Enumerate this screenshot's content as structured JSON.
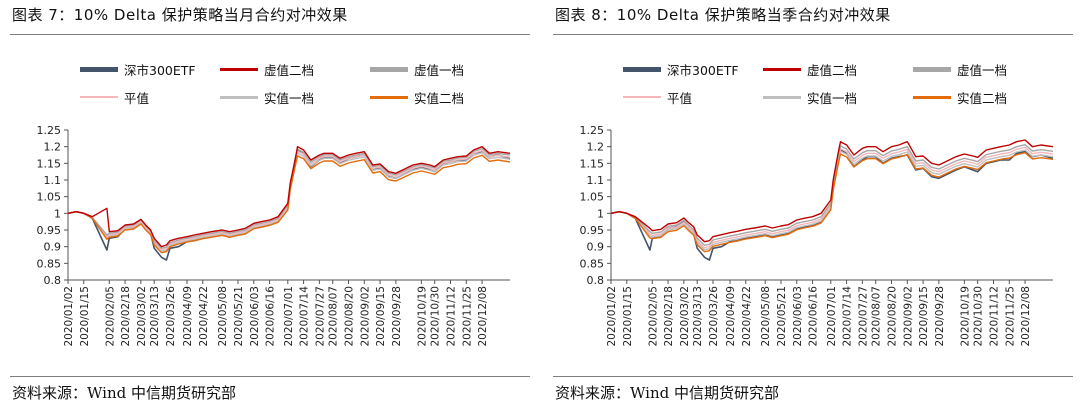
{
  "panels": [
    {
      "title": "图表 7：10% Delta 保护策略当月合约对冲效果",
      "source": "资料来源：Wind  中信期货研究部"
    },
    {
      "title": "图表 8：10% Delta 保护策略当季合约对冲效果",
      "source": "资料来源：Wind  中信期货研究部"
    }
  ],
  "chart_data": [
    {
      "type": "line",
      "title": "",
      "xlabel": "",
      "ylabel": "",
      "ylim": [
        0.8,
        1.25
      ],
      "yticks": [
        "1.25",
        "1.2",
        "1.15",
        "1.1",
        "1.05",
        "1",
        "0.95",
        "0.9",
        "0.85",
        "0.8"
      ],
      "grid": false,
      "legend_position": "top",
      "x_tick_labels": [
        "2020/01/02",
        "2020/01/15",
        "2020/02/05",
        "2020/02/18",
        "2020/03/02",
        "2020/03/13",
        "2020/03/26",
        "2020/04/09",
        "2020/04/22",
        "2020/05/08",
        "2020/05/21",
        "2020/06/03",
        "2020/06/16",
        "2020/07/01",
        "2020/07/14",
        "2020/07/27",
        "2020/08/07",
        "2020/08/20",
        "2020/09/02",
        "2020/09/15",
        "2020/09/28",
        "2020/10/19",
        "2020/10/30",
        "2020/11/12",
        "2020/11/25",
        "2020/12/08"
      ],
      "x": [
        "2020/01/02",
        "2020/01/09",
        "2020/01/15",
        "2020/01/22",
        "2020/02/03",
        "2020/02/05",
        "2020/02/12",
        "2020/02/18",
        "2020/02/25",
        "2020/03/02",
        "2020/03/06",
        "2020/03/10",
        "2020/03/13",
        "2020/03/19",
        "2020/03/23",
        "2020/03/26",
        "2020/04/02",
        "2020/04/09",
        "2020/04/15",
        "2020/04/22",
        "2020/04/29",
        "2020/05/08",
        "2020/05/14",
        "2020/05/21",
        "2020/05/27",
        "2020/06/03",
        "2020/06/09",
        "2020/06/16",
        "2020/06/23",
        "2020/07/01",
        "2020/07/03",
        "2020/07/07",
        "2020/07/09",
        "2020/07/14",
        "2020/07/20",
        "2020/07/27",
        "2020/07/31",
        "2020/08/07",
        "2020/08/13",
        "2020/08/20",
        "2020/08/26",
        "2020/09/02",
        "2020/09/09",
        "2020/09/15",
        "2020/09/22",
        "2020/09/28",
        "2020/10/12",
        "2020/10/19",
        "2020/10/26",
        "2020/10/30",
        "2020/11/06",
        "2020/11/12",
        "2020/11/18",
        "2020/11/25",
        "2020/12/01",
        "2020/12/08",
        "2020/12/14",
        "2020/12/21",
        "2020/12/31"
      ],
      "series": [
        {
          "name": "深市300ETF",
          "color": "#44546a",
          "values": [
            1.0,
            1.005,
            1.0,
            0.985,
            0.89,
            0.925,
            0.93,
            0.955,
            0.96,
            0.975,
            0.955,
            0.94,
            0.895,
            0.868,
            0.86,
            0.895,
            0.9,
            0.915,
            0.918,
            0.925,
            0.93,
            0.938,
            0.93,
            0.935,
            0.94,
            0.955,
            0.96,
            0.965,
            0.975,
            1.02,
            1.08,
            1.16,
            1.19,
            1.18,
            1.14,
            1.16,
            1.17,
            1.17,
            1.15,
            1.165,
            1.17,
            1.175,
            1.13,
            1.135,
            1.11,
            1.105,
            1.13,
            1.14,
            1.13,
            1.125,
            1.15,
            1.155,
            1.16,
            1.16,
            1.18,
            1.185,
            1.17,
            1.175,
            1.165
          ]
        },
        {
          "name": "虚值二档",
          "color": "#c00000",
          "values": [
            1.0,
            1.005,
            1.0,
            0.99,
            1.015,
            0.945,
            0.948,
            0.965,
            0.968,
            0.982,
            0.965,
            0.95,
            0.925,
            0.9,
            0.905,
            0.918,
            0.925,
            0.93,
            0.935,
            0.94,
            0.945,
            0.95,
            0.945,
            0.95,
            0.955,
            0.97,
            0.975,
            0.98,
            0.99,
            1.03,
            1.09,
            1.16,
            1.2,
            1.19,
            1.16,
            1.175,
            1.18,
            1.18,
            1.165,
            1.175,
            1.18,
            1.185,
            1.145,
            1.148,
            1.125,
            1.12,
            1.145,
            1.15,
            1.145,
            1.14,
            1.16,
            1.165,
            1.17,
            1.172,
            1.19,
            1.2,
            1.18,
            1.185,
            1.18
          ]
        },
        {
          "name": "虚值一档",
          "color": "#a6a6a6",
          "values": [
            1.0,
            1.005,
            1.0,
            0.988,
            0.935,
            0.94,
            0.944,
            0.962,
            0.965,
            0.98,
            0.962,
            0.947,
            0.918,
            0.895,
            0.898,
            0.912,
            0.92,
            0.926,
            0.93,
            0.936,
            0.94,
            0.946,
            0.94,
            0.946,
            0.95,
            0.966,
            0.97,
            0.976,
            0.985,
            1.025,
            1.085,
            1.156,
            1.192,
            1.183,
            1.154,
            1.17,
            1.176,
            1.176,
            1.16,
            1.17,
            1.175,
            1.18,
            1.14,
            1.144,
            1.12,
            1.116,
            1.14,
            1.146,
            1.14,
            1.136,
            1.156,
            1.16,
            1.166,
            1.168,
            1.186,
            1.194,
            1.176,
            1.18,
            1.175
          ]
        },
        {
          "name": "平值",
          "color": "#f4b6b9",
          "values": [
            1.0,
            1.005,
            1.0,
            0.987,
            0.93,
            0.936,
            0.94,
            0.958,
            0.961,
            0.976,
            0.958,
            0.944,
            0.913,
            0.89,
            0.893,
            0.908,
            0.916,
            0.922,
            0.926,
            0.932,
            0.936,
            0.942,
            0.936,
            0.942,
            0.946,
            0.962,
            0.966,
            0.972,
            0.981,
            1.02,
            1.08,
            1.15,
            1.186,
            1.178,
            1.148,
            1.165,
            1.171,
            1.171,
            1.155,
            1.165,
            1.17,
            1.175,
            1.135,
            1.139,
            1.115,
            1.111,
            1.135,
            1.141,
            1.135,
            1.131,
            1.151,
            1.155,
            1.161,
            1.163,
            1.18,
            1.188,
            1.17,
            1.174,
            1.168
          ]
        },
        {
          "name": "实值一档",
          "color": "#bfbfbf",
          "values": [
            1.0,
            1.005,
            1.0,
            0.986,
            0.926,
            0.932,
            0.936,
            0.954,
            0.957,
            0.972,
            0.954,
            0.94,
            0.909,
            0.886,
            0.889,
            0.904,
            0.912,
            0.918,
            0.922,
            0.928,
            0.932,
            0.938,
            0.932,
            0.938,
            0.942,
            0.958,
            0.962,
            0.968,
            0.977,
            1.016,
            1.076,
            1.145,
            1.18,
            1.172,
            1.142,
            1.159,
            1.165,
            1.165,
            1.149,
            1.159,
            1.164,
            1.169,
            1.129,
            1.133,
            1.109,
            1.105,
            1.129,
            1.135,
            1.129,
            1.125,
            1.145,
            1.149,
            1.155,
            1.157,
            1.174,
            1.182,
            1.164,
            1.168,
            1.162
          ]
        },
        {
          "name": "实值二档",
          "color": "#e46c0a",
          "values": [
            1.0,
            1.005,
            1.0,
            0.985,
            0.922,
            0.928,
            0.932,
            0.95,
            0.953,
            0.968,
            0.95,
            0.936,
            0.905,
            0.882,
            0.885,
            0.9,
            0.908,
            0.914,
            0.918,
            0.924,
            0.928,
            0.934,
            0.928,
            0.934,
            0.938,
            0.954,
            0.958,
            0.964,
            0.973,
            1.01,
            1.07,
            1.14,
            1.172,
            1.164,
            1.134,
            1.151,
            1.157,
            1.157,
            1.141,
            1.151,
            1.156,
            1.161,
            1.121,
            1.125,
            1.101,
            1.097,
            1.121,
            1.127,
            1.121,
            1.117,
            1.137,
            1.141,
            1.147,
            1.149,
            1.166,
            1.174,
            1.156,
            1.16,
            1.154
          ]
        }
      ]
    },
    {
      "type": "line",
      "title": "",
      "xlabel": "",
      "ylabel": "",
      "ylim": [
        0.8,
        1.25
      ],
      "yticks": [
        "1.25",
        "1.2",
        "1.15",
        "1.1",
        "1.05",
        "1",
        "0.95",
        "0.9",
        "0.85",
        "0.8"
      ],
      "grid": false,
      "legend_position": "top",
      "x_tick_labels": [
        "2020/01/02",
        "2020/01/15",
        "2020/02/05",
        "2020/02/18",
        "2020/03/02",
        "2020/03/13",
        "2020/03/26",
        "2020/04/09",
        "2020/04/22",
        "2020/05/08",
        "2020/05/21",
        "2020/06/03",
        "2020/06/16",
        "2020/07/01",
        "2020/07/14",
        "2020/07/27",
        "2020/08/07",
        "2020/08/20",
        "2020/09/02",
        "2020/09/15",
        "2020/09/28",
        "2020/10/19",
        "2020/10/30",
        "2020/11/12",
        "2020/11/25",
        "2020/12/08"
      ],
      "x": [
        "2020/01/02",
        "2020/01/09",
        "2020/01/15",
        "2020/01/22",
        "2020/02/03",
        "2020/02/05",
        "2020/02/12",
        "2020/02/18",
        "2020/02/25",
        "2020/03/02",
        "2020/03/06",
        "2020/03/10",
        "2020/03/13",
        "2020/03/19",
        "2020/03/23",
        "2020/03/26",
        "2020/04/02",
        "2020/04/09",
        "2020/04/15",
        "2020/04/22",
        "2020/04/29",
        "2020/05/08",
        "2020/05/14",
        "2020/05/21",
        "2020/05/27",
        "2020/06/03",
        "2020/06/09",
        "2020/06/16",
        "2020/06/23",
        "2020/07/01",
        "2020/07/03",
        "2020/07/07",
        "2020/07/09",
        "2020/07/14",
        "2020/07/20",
        "2020/07/27",
        "2020/07/31",
        "2020/08/07",
        "2020/08/13",
        "2020/08/20",
        "2020/08/26",
        "2020/09/02",
        "2020/09/09",
        "2020/09/15",
        "2020/09/22",
        "2020/09/28",
        "2020/10/12",
        "2020/10/19",
        "2020/10/26",
        "2020/10/30",
        "2020/11/06",
        "2020/11/12",
        "2020/11/18",
        "2020/11/25",
        "2020/12/01",
        "2020/12/08",
        "2020/12/14",
        "2020/12/21",
        "2020/12/31"
      ],
      "series": [
        {
          "name": "深市300ETF",
          "color": "#44546a",
          "values": [
            1.0,
            1.005,
            1.0,
            0.985,
            0.89,
            0.925,
            0.93,
            0.955,
            0.96,
            0.975,
            0.955,
            0.94,
            0.895,
            0.868,
            0.86,
            0.895,
            0.9,
            0.915,
            0.918,
            0.925,
            0.93,
            0.938,
            0.93,
            0.935,
            0.94,
            0.955,
            0.96,
            0.965,
            0.975,
            1.02,
            1.08,
            1.16,
            1.19,
            1.18,
            1.14,
            1.16,
            1.17,
            1.17,
            1.15,
            1.165,
            1.17,
            1.175,
            1.13,
            1.135,
            1.11,
            1.105,
            1.13,
            1.14,
            1.13,
            1.125,
            1.15,
            1.155,
            1.16,
            1.16,
            1.18,
            1.185,
            1.17,
            1.175,
            1.165
          ]
        },
        {
          "name": "虚值二档",
          "color": "#c00000",
          "values": [
            1.0,
            1.005,
            1.0,
            0.99,
            0.955,
            0.948,
            0.952,
            0.968,
            0.972,
            0.986,
            0.972,
            0.96,
            0.935,
            0.915,
            0.918,
            0.93,
            0.936,
            0.942,
            0.946,
            0.952,
            0.956,
            0.962,
            0.956,
            0.962,
            0.966,
            0.98,
            0.985,
            0.99,
            1.0,
            1.04,
            1.1,
            1.18,
            1.215,
            1.205,
            1.175,
            1.195,
            1.2,
            1.2,
            1.185,
            1.2,
            1.205,
            1.215,
            1.17,
            1.172,
            1.15,
            1.145,
            1.17,
            1.178,
            1.172,
            1.168,
            1.19,
            1.195,
            1.2,
            1.205,
            1.215,
            1.22,
            1.2,
            1.205,
            1.2
          ]
        },
        {
          "name": "虚值一档",
          "color": "#a6a6a6",
          "values": [
            1.0,
            1.005,
            1.0,
            0.988,
            0.945,
            0.94,
            0.944,
            0.961,
            0.965,
            0.979,
            0.964,
            0.951,
            0.925,
            0.904,
            0.907,
            0.92,
            0.926,
            0.932,
            0.936,
            0.942,
            0.946,
            0.952,
            0.946,
            0.952,
            0.956,
            0.97,
            0.975,
            0.98,
            0.99,
            1.03,
            1.09,
            1.168,
            1.202,
            1.193,
            1.163,
            1.182,
            1.188,
            1.188,
            1.173,
            1.187,
            1.192,
            1.2,
            1.157,
            1.16,
            1.138,
            1.133,
            1.157,
            1.165,
            1.159,
            1.155,
            1.176,
            1.181,
            1.186,
            1.19,
            1.2,
            1.206,
            1.187,
            1.191,
            1.186
          ]
        },
        {
          "name": "平值",
          "color": "#f4b6b9",
          "values": [
            1.0,
            1.005,
            1.0,
            0.987,
            0.938,
            0.934,
            0.938,
            0.955,
            0.959,
            0.973,
            0.958,
            0.945,
            0.918,
            0.897,
            0.9,
            0.913,
            0.919,
            0.925,
            0.929,
            0.935,
            0.939,
            0.945,
            0.939,
            0.945,
            0.949,
            0.963,
            0.968,
            0.973,
            0.983,
            1.023,
            1.083,
            1.16,
            1.194,
            1.185,
            1.155,
            1.174,
            1.18,
            1.18,
            1.165,
            1.179,
            1.184,
            1.192,
            1.149,
            1.152,
            1.13,
            1.125,
            1.149,
            1.157,
            1.151,
            1.147,
            1.168,
            1.173,
            1.178,
            1.182,
            1.192,
            1.198,
            1.179,
            1.183,
            1.178
          ]
        },
        {
          "name": "实值一档",
          "color": "#bfbfbf",
          "values": [
            1.0,
            1.005,
            1.0,
            0.986,
            0.932,
            0.929,
            0.933,
            0.95,
            0.954,
            0.968,
            0.953,
            0.94,
            0.912,
            0.891,
            0.894,
            0.907,
            0.913,
            0.919,
            0.923,
            0.929,
            0.933,
            0.939,
            0.933,
            0.939,
            0.943,
            0.957,
            0.962,
            0.967,
            0.977,
            1.017,
            1.076,
            1.152,
            1.186,
            1.177,
            1.147,
            1.166,
            1.172,
            1.172,
            1.157,
            1.171,
            1.176,
            1.184,
            1.141,
            1.144,
            1.122,
            1.117,
            1.141,
            1.149,
            1.143,
            1.139,
            1.16,
            1.165,
            1.17,
            1.174,
            1.184,
            1.19,
            1.171,
            1.175,
            1.17
          ]
        },
        {
          "name": "实值二档",
          "color": "#e46c0a",
          "values": [
            1.0,
            1.005,
            1.0,
            0.985,
            0.926,
            0.924,
            0.928,
            0.945,
            0.949,
            0.963,
            0.948,
            0.935,
            0.906,
            0.885,
            0.888,
            0.901,
            0.907,
            0.913,
            0.917,
            0.923,
            0.927,
            0.933,
            0.927,
            0.933,
            0.937,
            0.951,
            0.956,
            0.961,
            0.971,
            1.011,
            1.07,
            1.145,
            1.178,
            1.169,
            1.139,
            1.158,
            1.164,
            1.164,
            1.149,
            1.163,
            1.168,
            1.176,
            1.133,
            1.136,
            1.114,
            1.109,
            1.133,
            1.141,
            1.135,
            1.131,
            1.152,
            1.157,
            1.162,
            1.166,
            1.176,
            1.182,
            1.163,
            1.167,
            1.162
          ]
        }
      ]
    }
  ]
}
